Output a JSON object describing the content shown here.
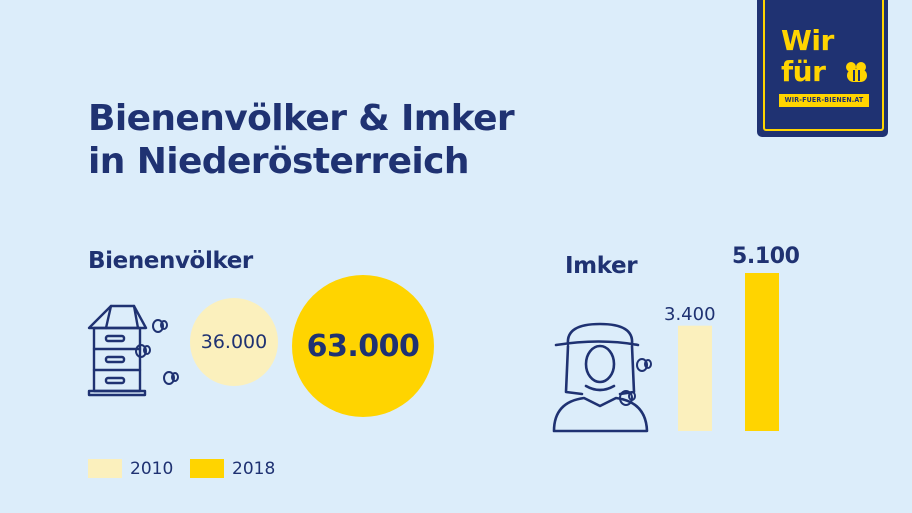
{
  "title": [
    "Bienenvölker & Imker",
    "in Niederösterreich"
  ],
  "logo": {
    "line1": "Wir",
    "line2": "für",
    "url": "WIR-FUER-BIENEN.AT"
  },
  "colors": {
    "navy": "#1f3272",
    "y2010": "#fbf0bd",
    "y2018": "#ffd400",
    "background": "#dcedfa"
  },
  "icons": {
    "hive": "beehive-icon",
    "beekeeper": "beekeeper-icon",
    "bee": "bee-icon"
  },
  "chart_data": [
    {
      "type": "bubble",
      "title": "Bienenvölker",
      "series": [
        {
          "name": "2010",
          "value": 36000,
          "label": "36.000"
        },
        {
          "name": "2018",
          "value": 63000,
          "label": "63.000"
        }
      ]
    },
    {
      "type": "bar",
      "title": "Imker",
      "series": [
        {
          "name": "2010",
          "value": 3400,
          "label": "3.400"
        },
        {
          "name": "2018",
          "value": 5100,
          "label": "5.100"
        }
      ]
    }
  ],
  "legend": [
    {
      "name": "2010",
      "label": "2010"
    },
    {
      "name": "2018",
      "label": "2018"
    }
  ]
}
